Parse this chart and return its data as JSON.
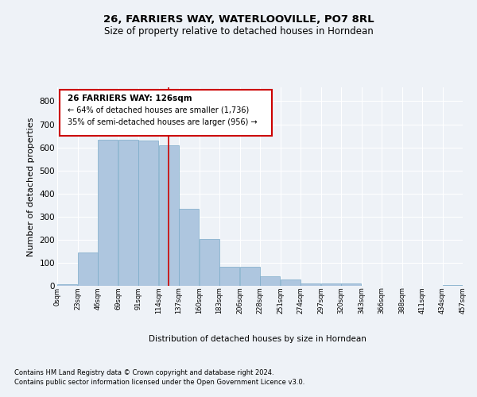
{
  "title1": "26, FARRIERS WAY, WATERLOOVILLE, PO7 8RL",
  "title2": "Size of property relative to detached houses in Horndean",
  "xlabel": "Distribution of detached houses by size in Horndean",
  "ylabel": "Number of detached properties",
  "footer1": "Contains HM Land Registry data © Crown copyright and database right 2024.",
  "footer2": "Contains public sector information licensed under the Open Government Licence v3.0.",
  "annotation_line1": "26 FARRIERS WAY: 126sqm",
  "annotation_line2": "← 64% of detached houses are smaller (1,736)",
  "annotation_line3": "35% of semi-detached houses are larger (956) →",
  "bar_color": "#aec6df",
  "bar_edge_color": "#7aaac8",
  "ref_line_color": "#cc0000",
  "ref_line_x": 126,
  "bins": [
    0,
    23,
    46,
    69,
    92,
    115,
    138,
    161,
    184,
    207,
    230,
    253,
    276,
    299,
    322,
    345,
    368,
    391,
    414,
    437,
    460
  ],
  "counts": [
    7,
    143,
    634,
    632,
    629,
    610,
    335,
    203,
    84,
    84,
    40,
    27,
    10,
    10,
    10,
    0,
    0,
    0,
    0,
    5
  ],
  "tick_labels": [
    "0sqm",
    "23sqm",
    "46sqm",
    "69sqm",
    "91sqm",
    "114sqm",
    "137sqm",
    "160sqm",
    "183sqm",
    "206sqm",
    "228sqm",
    "251sqm",
    "274sqm",
    "297sqm",
    "320sqm",
    "343sqm",
    "366sqm",
    "388sqm",
    "411sqm",
    "434sqm",
    "457sqm"
  ],
  "ylim": [
    0,
    860
  ],
  "yticks": [
    0,
    100,
    200,
    300,
    400,
    500,
    600,
    700,
    800
  ],
  "background_color": "#eef2f7",
  "plot_bg_color": "#eef2f7",
  "ann_box_color": "white",
  "ann_border_color": "#cc0000",
  "grid_color": "white",
  "title_fontsize": 9.5,
  "subtitle_fontsize": 8.5,
  "ylabel_fontsize": 8,
  "xtick_fontsize": 6,
  "ytick_fontsize": 7.5,
  "footer_fontsize": 6,
  "xlabel_fontsize": 7.5
}
